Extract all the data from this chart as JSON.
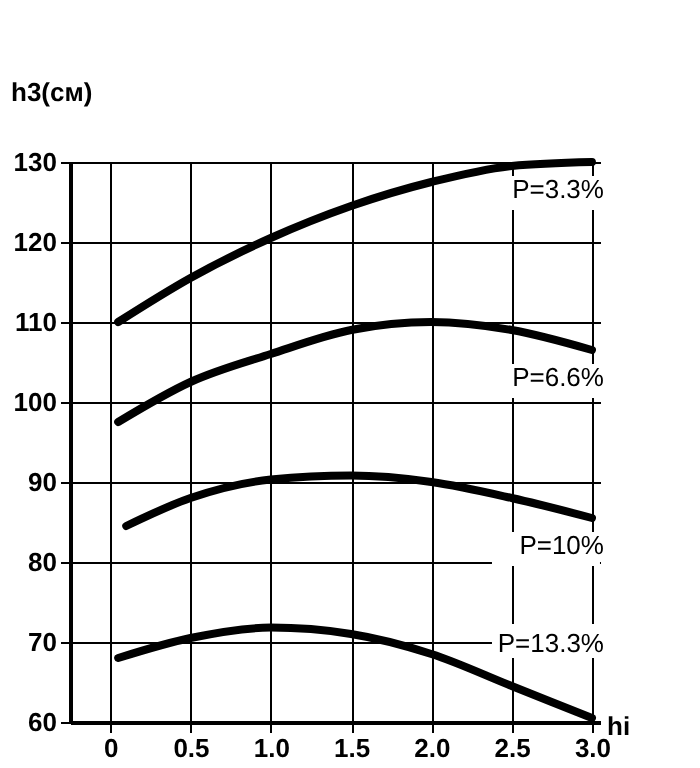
{
  "chart_data": {
    "type": "line",
    "ylabel": "h3(см)",
    "xlabel": "hi",
    "xlim": [
      -0.25,
      3.05
    ],
    "xticks": [
      0,
      0.5,
      {
        "value": 1,
        "label": "1.0"
      },
      1.5,
      {
        "value": 2,
        "label": "2.0"
      },
      2.5,
      {
        "value": 3,
        "label": "3.0"
      }
    ],
    "ylim": [
      60,
      130
    ],
    "yticks": [
      60,
      70,
      80,
      90,
      100,
      110,
      120,
      130
    ],
    "grid": true,
    "line_style": "solid",
    "marker": "none",
    "series": [
      {
        "name": "P=3.3%",
        "color": "#000000",
        "x": [
          0.05,
          0.5,
          1.0,
          1.5,
          2.0,
          2.5,
          3.0
        ],
        "values": [
          110,
          115.5,
          120.5,
          124.5,
          127.5,
          129.5,
          130
        ]
      },
      {
        "name": "P=6.6%",
        "color": "#000000",
        "x": [
          0.05,
          0.5,
          1.0,
          1.5,
          2.0,
          2.5,
          3.0
        ],
        "values": [
          97.5,
          102.5,
          106,
          109,
          110,
          109,
          106.5
        ]
      },
      {
        "name": "P=10%",
        "color": "#000000",
        "x": [
          0.1,
          0.5,
          1.0,
          1.5,
          2.0,
          2.5,
          3.0
        ],
        "values": [
          84.5,
          88,
          90.3,
          90.8,
          90,
          88,
          85.5
        ]
      },
      {
        "name": "P=13.3%",
        "color": "#000000",
        "x": [
          0.05,
          0.5,
          1.0,
          1.5,
          2.0,
          2.5,
          3.0
        ],
        "values": [
          68,
          70.5,
          71.8,
          71,
          68.5,
          64.5,
          60.5
        ]
      }
    ]
  }
}
